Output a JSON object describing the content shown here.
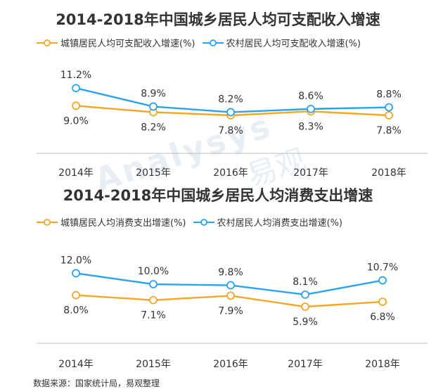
{
  "colors": {
    "urban": "#F5A623",
    "rural": "#29A3F0",
    "axis": "#bdbdbd"
  },
  "watermark": {
    "brand": "Analysys",
    "cn": "易观"
  },
  "source": "数据来源：国家统计局，易观整理",
  "chart_data": [
    {
      "type": "line",
      "title": "2014-2018年中国城乡居民人均可支配收入增速",
      "categories": [
        "2014年",
        "2015年",
        "2016年",
        "2017年",
        "2018年"
      ],
      "series": [
        {
          "name": "城镇居民人均可支配收入增速(%)",
          "values": [
            9.0,
            8.2,
            7.8,
            8.3,
            7.8
          ],
          "labels": [
            "9.0%",
            "8.2%",
            "7.8%",
            "8.3%",
            "7.8%"
          ]
        },
        {
          "name": "农村居民人均可支配收入增速(%)",
          "values": [
            11.2,
            8.9,
            8.2,
            8.6,
            8.8
          ],
          "labels": [
            "11.2%",
            "8.9%",
            "8.2%",
            "8.6%",
            "8.8%"
          ]
        }
      ],
      "legend": "top-left",
      "grid": false
    },
    {
      "type": "line",
      "title": "2014-2018年中国城乡居民人均消费支出增速",
      "categories": [
        "2014年",
        "2015年",
        "2016年",
        "2017年",
        "2018年"
      ],
      "series": [
        {
          "name": "城镇居民人均消费支出增速(%)",
          "values": [
            8.0,
            7.1,
            7.9,
            5.9,
            6.8
          ],
          "labels": [
            "8.0%",
            "7.1%",
            "7.9%",
            "5.9%",
            "6.8%"
          ]
        },
        {
          "name": "农村居民人均消费支出增速(%)",
          "values": [
            12.0,
            10.0,
            9.8,
            8.1,
            10.7
          ],
          "labels": [
            "12.0%",
            "10.0%",
            "9.8%",
            "8.1%",
            "10.7%"
          ]
        }
      ],
      "legend": "top-left",
      "grid": false
    }
  ]
}
